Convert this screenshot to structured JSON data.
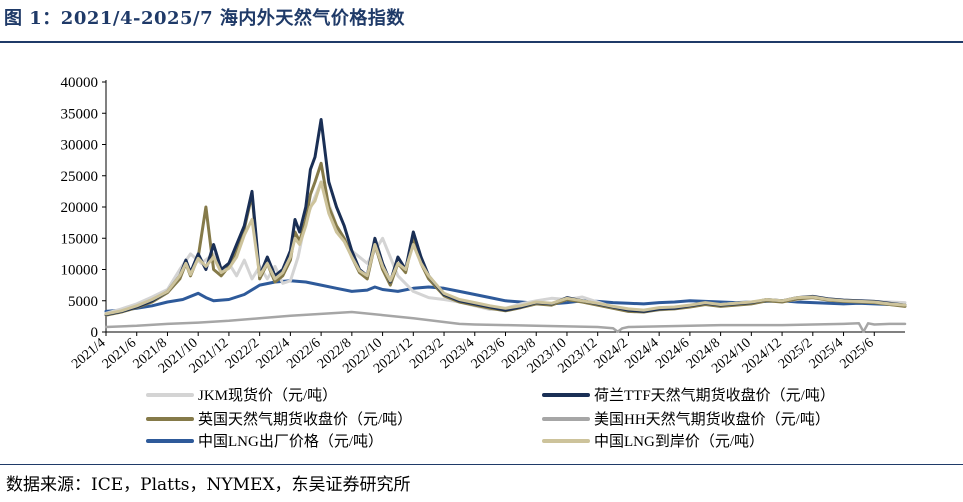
{
  "title": "图 1：2021/4-2025/7 海内外天然气价格指数",
  "source": "数据来源：ICE，Platts，NYMEX，东吴证券研究所",
  "chart_data": {
    "type": "line",
    "ylim": [
      0,
      40000
    ],
    "yticks": [
      0,
      5000,
      10000,
      15000,
      20000,
      25000,
      30000,
      35000,
      40000
    ],
    "xticks": [
      "2021/4",
      "2021/6",
      "2021/8",
      "2021/10",
      "2021/12",
      "2022/2",
      "2022/4",
      "2022/6",
      "2022/8",
      "2022/10",
      "2022/12",
      "2023/2",
      "2023/4",
      "2023/6",
      "2023/8",
      "2023/10",
      "2023/12",
      "2024/2",
      "2024/4",
      "2024/6",
      "2024/8",
      "2024/10",
      "2024/12",
      "2025/2",
      "2025/4",
      "2025/6"
    ],
    "x_start": "2021/4",
    "x_end": "2025/7",
    "legend_position": "bottom",
    "series": [
      {
        "name": "JKM现货价（元/吨）",
        "color": "#d4d4d4",
        "width": 3,
        "x": [
          0,
          1,
          2,
          3,
          4,
          4.8,
          5.5,
          6.2,
          7,
          7.5,
          8,
          8.5,
          9,
          9.5,
          10,
          10.5,
          11,
          11.5,
          12,
          12.5,
          13,
          14,
          15,
          16,
          17,
          18,
          19,
          20,
          21,
          22,
          23,
          24,
          25,
          26,
          27,
          28,
          29,
          30,
          31,
          32,
          33,
          34,
          35,
          36,
          37,
          38,
          39,
          40,
          41,
          42,
          43,
          44,
          45,
          46,
          47,
          48,
          49,
          50,
          51,
          52
        ],
        "values": [
          3000,
          3700,
          4500,
          5600,
          6800,
          10000,
          12500,
          11000,
          12500,
          10000,
          11000,
          9000,
          11500,
          8500,
          10500,
          8500,
          10500,
          7800,
          8200,
          12000,
          18000,
          24000,
          17000,
          13000,
          11000,
          15000,
          9000,
          6500,
          5500,
          5200,
          4800,
          4200,
          3600,
          3800,
          4500,
          5000,
          5400,
          5200,
          5600,
          4800,
          4000,
          3500,
          3300,
          3500,
          3800,
          4100,
          4500,
          4400,
          4600,
          4800,
          5000,
          4900,
          5200,
          5600,
          5300,
          5100,
          5000,
          4900,
          4800,
          4700
        ]
      },
      {
        "name": "荷兰TTF天然气期货收盘价（元/吨）",
        "color": "#1a2f55",
        "width": 3,
        "x": [
          0,
          1,
          2,
          3,
          4,
          4.8,
          5.2,
          5.5,
          6,
          6.5,
          7,
          7.5,
          8,
          8.5,
          9,
          9.5,
          10,
          10.5,
          11,
          11.5,
          12,
          12.3,
          12.6,
          13,
          13.3,
          13.6,
          14,
          14.5,
          15,
          15.5,
          16,
          16.5,
          17,
          17.5,
          18,
          18.5,
          19,
          19.5,
          20,
          20.5,
          21,
          22,
          23,
          24,
          25,
          26,
          27,
          28,
          29,
          30,
          31,
          32,
          33,
          34,
          35,
          36,
          37,
          38,
          39,
          40,
          41,
          42,
          43,
          44,
          45,
          46,
          47,
          48,
          49,
          50,
          51,
          52
        ],
        "values": [
          2800,
          3300,
          4000,
          5000,
          6500,
          9000,
          11500,
          9500,
          12500,
          10000,
          14000,
          10000,
          11000,
          14000,
          17000,
          22500,
          9000,
          12000,
          9000,
          10000,
          13000,
          18000,
          16000,
          20000,
          26000,
          28000,
          34000,
          24000,
          20000,
          17000,
          13000,
          10000,
          9000,
          15000,
          11000,
          8000,
          12000,
          10000,
          16000,
          12000,
          9000,
          6000,
          5000,
          4500,
          4000,
          3500,
          4000,
          4700,
          4500,
          5500,
          5000,
          4500,
          4000,
          3500,
          3300,
          3700,
          3800,
          4200,
          4600,
          4300,
          4500,
          4700,
          5200,
          5000,
          5500,
          5700,
          5300,
          5100,
          5000,
          4900,
          4600,
          4300
        ]
      },
      {
        "name": "英国天然气期货收盘价（元/吨）",
        "color": "#857a49",
        "width": 3,
        "x": [
          0,
          1,
          2,
          3,
          4,
          4.8,
          5.2,
          5.5,
          6,
          6.5,
          7,
          7.5,
          8,
          8.5,
          9,
          9.5,
          10,
          10.5,
          11,
          11.5,
          12,
          12.3,
          12.6,
          13,
          13.3,
          13.6,
          14,
          14.5,
          15,
          15.5,
          16,
          16.5,
          17,
          17.5,
          18,
          18.5,
          19,
          19.5,
          20,
          20.5,
          21,
          22,
          23,
          24,
          25,
          26,
          27,
          28,
          29,
          30,
          31,
          32,
          33,
          34,
          35,
          36,
          37,
          38,
          39,
          40,
          41,
          42,
          43,
          44,
          45,
          46,
          47,
          48,
          49,
          50,
          51,
          52
        ],
        "values": [
          2700,
          3200,
          3900,
          4800,
          6300,
          8500,
          11000,
          9000,
          12000,
          20000,
          10000,
          9000,
          10500,
          13000,
          16500,
          22000,
          8500,
          11000,
          8000,
          9000,
          11500,
          16000,
          14500,
          18000,
          22000,
          24000,
          27000,
          20000,
          17000,
          15000,
          12000,
          9500,
          8500,
          14000,
          10000,
          7500,
          11000,
          9500,
          15000,
          11000,
          8500,
          5800,
          4800,
          4300,
          3800,
          3400,
          3900,
          4500,
          4300,
          5200,
          4800,
          4300,
          3800,
          3300,
          3200,
          3600,
          3700,
          4000,
          4400,
          4100,
          4300,
          4500,
          5000,
          4800,
          5300,
          5500,
          5100,
          4900,
          4800,
          4700,
          4400,
          4100
        ]
      },
      {
        "name": "美国HH天然气期货收盘价（元/吨）",
        "color": "#a6a6a6",
        "width": 2.5,
        "x": [
          0,
          2,
          4,
          6,
          8,
          10,
          12,
          14,
          16,
          18,
          20,
          22,
          23,
          24,
          26,
          28,
          30,
          32,
          33,
          33.3,
          33.6,
          34,
          36,
          38,
          40,
          42,
          44,
          46,
          48,
          49,
          49.3,
          49.6,
          50,
          51,
          52
        ],
        "values": [
          800,
          1000,
          1300,
          1500,
          1800,
          2200,
          2600,
          2900,
          3200,
          2700,
          2200,
          1600,
          1300,
          1200,
          1100,
          1000,
          900,
          800,
          600,
          50,
          600,
          800,
          900,
          1000,
          1100,
          1100,
          1100,
          1200,
          1300,
          1400,
          50,
          1400,
          1200,
          1300,
          1300
        ]
      },
      {
        "name": "中国LNG出厂价格（元/吨）",
        "color": "#2e5a9a",
        "width": 3,
        "x": [
          0,
          1,
          2,
          3,
          4,
          5,
          6,
          6.5,
          7,
          8,
          9,
          10,
          11,
          12,
          13,
          14,
          15,
          16,
          17,
          17.5,
          18,
          19,
          20,
          21,
          22,
          23,
          24,
          25,
          26,
          27,
          28,
          29,
          30,
          31,
          32,
          33,
          34,
          35,
          36,
          37,
          38,
          39,
          40,
          41,
          42,
          43,
          44,
          45,
          46,
          47,
          48,
          49,
          50,
          51,
          52
        ],
        "values": [
          3300,
          3500,
          3800,
          4200,
          4800,
          5200,
          6200,
          5500,
          5000,
          5200,
          6000,
          7500,
          8000,
          8200,
          8000,
          7500,
          7000,
          6500,
          6700,
          7200,
          6800,
          6500,
          7000,
          7200,
          7000,
          6500,
          6000,
          5500,
          5000,
          4800,
          4600,
          4500,
          4700,
          5000,
          4900,
          4700,
          4600,
          4500,
          4700,
          4800,
          5000,
          4900,
          4800,
          4700,
          4800,
          4900,
          5000,
          4800,
          4700,
          4600,
          4500,
          4600,
          4500,
          4400,
          4300
        ]
      },
      {
        "name": "中国LNG到岸价（元/吨）",
        "color": "#cdc39b",
        "width": 3,
        "x": [
          0,
          1,
          2,
          3,
          4,
          4.8,
          5.2,
          5.5,
          6,
          6.5,
          7,
          7.5,
          8,
          8.5,
          9,
          9.5,
          10,
          10.5,
          11,
          11.5,
          12,
          12.3,
          12.6,
          13,
          13.3,
          13.6,
          14,
          14.5,
          15,
          15.5,
          16,
          16.5,
          17,
          17.5,
          18,
          18.5,
          19,
          19.5,
          20,
          20.5,
          21,
          22,
          23,
          24,
          25,
          26,
          27,
          28,
          29,
          30,
          31,
          32,
          33,
          34,
          35,
          36,
          37,
          38,
          39,
          40,
          41,
          42,
          43,
          44,
          45,
          46,
          47,
          48,
          49,
          50,
          51,
          52
        ],
        "values": [
          2900,
          3400,
          4200,
          5200,
          6500,
          9000,
          11000,
          9200,
          11800,
          10500,
          12000,
          9500,
          10200,
          12000,
          15500,
          18000,
          9000,
          11000,
          8500,
          9500,
          12000,
          15000,
          14000,
          17000,
          20000,
          21000,
          24000,
          19000,
          16000,
          14500,
          12000,
          9800,
          9000,
          14000,
          10500,
          8200,
          11000,
          10000,
          14000,
          11000,
          9000,
          6200,
          5200,
          4700,
          4200,
          3800,
          4200,
          4800,
          4600,
          5400,
          5000,
          4600,
          4100,
          3700,
          3500,
          3900,
          4000,
          4300,
          4700,
          4400,
          4600,
          4800,
          5200,
          5000,
          5500,
          5600,
          5200,
          5000,
          4900,
          4800,
          4500,
          4300
        ]
      }
    ]
  }
}
